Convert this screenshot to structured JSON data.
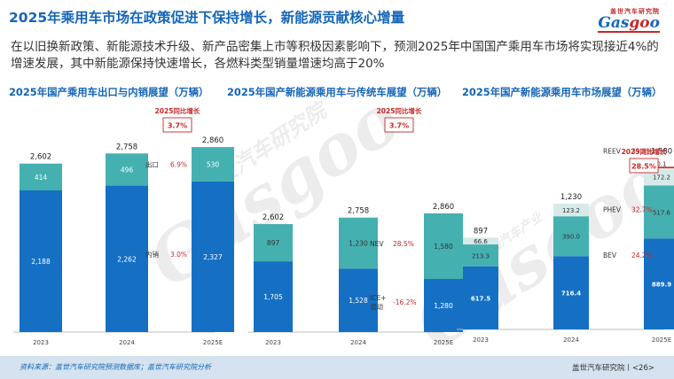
{
  "header": {
    "title": "2025年乘用车市场在政策促进下保持增长，新能源贡献核心增量",
    "subtitle": "在以旧换新政策、新能源技术升级、新产品密集上市等积极因素影响下，预测2025年中国国产乘用车市场将实现接近4%的增速发展，其中新能源保持快速增长，各燃料类型销量增速均高于20%"
  },
  "logo": {
    "cn": "盖世汽车研究院",
    "en_pre": "Gas",
    "en_o": "go",
    "en_post": "o"
  },
  "watermark": {
    "en": "Gasgoo",
    "cn": "盖世汽车研究院",
    "slogan": "在这里 读懂汽车产业"
  },
  "footer": {
    "source": "资料来源：盖世汽车研究院预测数据库；盖世汽车研究院分析",
    "brand": "盖世汽车研究院丨<26>"
  },
  "colors": {
    "dark": "#1570c4",
    "teal": "#45b0b0",
    "light": "#d7eaea",
    "accent": "#c62828",
    "title": "#1565b8"
  },
  "chart_data": [
    {
      "type": "bar",
      "stacked": true,
      "title": "2025年国产乘用车出口与内销展望（万辆）",
      "categories": [
        "2023",
        "2024",
        "2025E"
      ],
      "totals": [
        "2,602",
        "2,758",
        "2,860"
      ],
      "series": [
        {
          "name": "内销",
          "values": [
            2188,
            2262,
            2327
          ],
          "labels": [
            "2,188",
            "2,262",
            "2,327"
          ],
          "growth": "3.0%"
        },
        {
          "name": "出口",
          "values": [
            414,
            496,
            530
          ],
          "labels": [
            "414",
            "496",
            "530"
          ],
          "growth": "6.9%"
        }
      ],
      "callout": {
        "label": "2025同比增长",
        "value": "3.7%"
      },
      "ylim": [
        0,
        3000
      ]
    },
    {
      "type": "bar",
      "stacked": true,
      "title": "2025年国产新能源乘用车与传统车展望（万辆）",
      "categories": [
        "2023",
        "2024",
        "2025E"
      ],
      "totals": [
        "2,602",
        "2,758",
        "2,860"
      ],
      "series": [
        {
          "name": "ICE+ 混动",
          "values": [
            1705,
            1528,
            1280
          ],
          "labels": [
            "1,705",
            "1,528",
            "1,280"
          ],
          "growth": "-16.2%"
        },
        {
          "name": "NEV",
          "values": [
            897,
            1230,
            1580
          ],
          "labels": [
            "897",
            "1,230",
            "1,580"
          ],
          "growth": "28.5%"
        }
      ],
      "callout": {
        "label": "2025同比增长",
        "value": "3.7%"
      },
      "ylim": [
        0,
        3000
      ]
    },
    {
      "type": "bar",
      "stacked": true,
      "title": "2025年国产新能源乘用车市场展望（万辆）",
      "categories": [
        "2023",
        "2024",
        "2025E"
      ],
      "totals": [
        "897",
        "1,230",
        "1,580"
      ],
      "series": [
        {
          "name": "BEV",
          "values": [
            617.5,
            716.4,
            889.9
          ],
          "labels": [
            "617.5",
            "716.4",
            "889.9"
          ],
          "growth": "24.2%"
        },
        {
          "name": "PHEV",
          "values": [
            213.3,
            390.0,
            517.6
          ],
          "labels": [
            "213.3",
            "390.0",
            "517.6"
          ],
          "growth": "32.7%"
        },
        {
          "name": "REEV",
          "values": [
            66.6,
            123.2,
            172.2
          ],
          "labels": [
            "66.6",
            "123.2",
            "172.2"
          ],
          "growth": "39.8%"
        },
        {
          "name": "其他",
          "values": [
            0,
            0,
            0.1
          ],
          "labels": [
            "",
            "",
            "0.1"
          ]
        }
      ],
      "callout": {
        "label": "2025同比增长",
        "value": "28.5%"
      },
      "ylim": [
        0,
        1800
      ]
    }
  ]
}
